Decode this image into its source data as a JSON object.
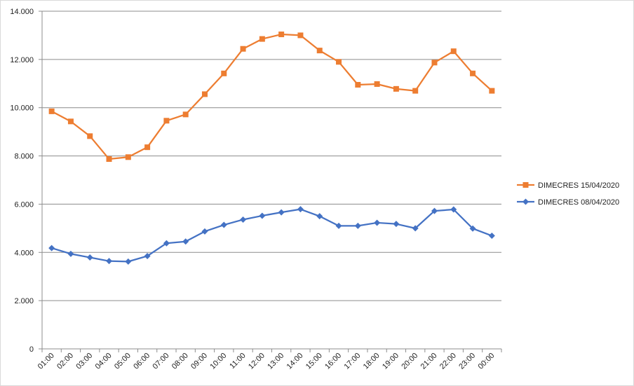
{
  "chart_data": {
    "type": "line",
    "title": "",
    "xlabel": "",
    "ylabel": "",
    "categories": [
      "01:00",
      "02:00",
      "03:00",
      "04:00",
      "05:00",
      "06:00",
      "07:00",
      "08:00",
      "09:00",
      "10:00",
      "11:00",
      "12:00",
      "13:00",
      "14:00",
      "15:00",
      "16:00",
      "17:00",
      "18:00",
      "19:00",
      "20:00",
      "21:00",
      "22:00",
      "23:00",
      "00:00"
    ],
    "ylim": [
      0,
      14000
    ],
    "y_ticks": [
      {
        "value": 0,
        "label": "0"
      },
      {
        "value": 2000,
        "label": "2.000"
      },
      {
        "value": 4000,
        "label": "4.000"
      },
      {
        "value": 6000,
        "label": "6.000"
      },
      {
        "value": 8000,
        "label": "8.000"
      },
      {
        "value": 10000,
        "label": "10.000"
      },
      {
        "value": 12000,
        "label": "12.000"
      },
      {
        "value": 14000,
        "label": "14.000"
      }
    ],
    "grid": true,
    "legend_position": "right",
    "series": [
      {
        "name": "DIMECRES 15/04/2020",
        "color": "#ED7D31",
        "marker": "square",
        "values": [
          9850,
          9430,
          8820,
          7870,
          7950,
          8360,
          9460,
          9720,
          10560,
          11420,
          12440,
          12850,
          13040,
          13000,
          12370,
          11900,
          10950,
          10980,
          10780,
          10700,
          11870,
          12340,
          11420,
          10700
        ]
      },
      {
        "name": "DIMECRES 08/04/2020",
        "color": "#4472C4",
        "marker": "diamond",
        "values": [
          4180,
          3940,
          3790,
          3640,
          3620,
          3850,
          4380,
          4450,
          4870,
          5140,
          5360,
          5520,
          5660,
          5790,
          5500,
          5100,
          5100,
          5230,
          5180,
          5000,
          5720,
          5780,
          4990,
          4690
        ]
      }
    ]
  }
}
